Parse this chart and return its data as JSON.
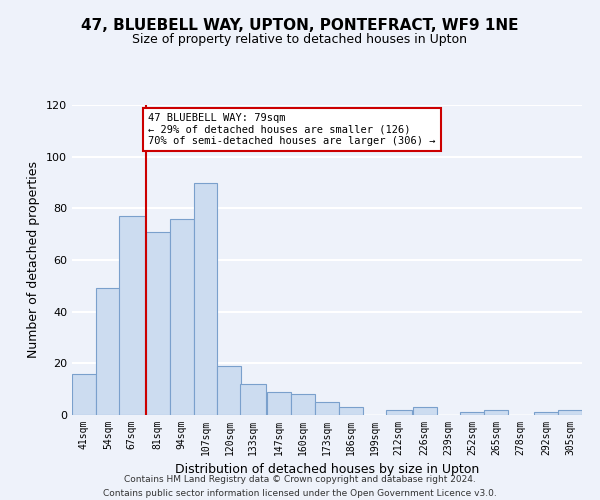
{
  "title": "47, BLUEBELL WAY, UPTON, PONTEFRACT, WF9 1NE",
  "subtitle": "Size of property relative to detached houses in Upton",
  "xlabel": "Distribution of detached houses by size in Upton",
  "ylabel": "Number of detached properties",
  "bin_labels": [
    "41sqm",
    "54sqm",
    "67sqm",
    "81sqm",
    "94sqm",
    "107sqm",
    "120sqm",
    "133sqm",
    "147sqm",
    "160sqm",
    "173sqm",
    "186sqm",
    "199sqm",
    "212sqm",
    "226sqm",
    "239sqm",
    "252sqm",
    "265sqm",
    "278sqm",
    "292sqm",
    "305sqm"
  ],
  "bar_heights": [
    16,
    49,
    77,
    71,
    76,
    90,
    19,
    12,
    9,
    8,
    5,
    3,
    0,
    2,
    3,
    0,
    1,
    2,
    0,
    1,
    2
  ],
  "bar_color": "#ccdcf0",
  "bar_edge_color": "#7aa0cc",
  "annotation_line1": "47 BLUEBELL WAY: 79sqm",
  "annotation_line2": "← 29% of detached houses are smaller (126)",
  "annotation_line3": "70% of semi-detached houses are larger (306) →",
  "annotation_box_color": "#ffffff",
  "annotation_box_edge_color": "#cc0000",
  "property_line_color": "#cc0000",
  "ylim": [
    0,
    120
  ],
  "yticks": [
    0,
    20,
    40,
    60,
    80,
    100,
    120
  ],
  "footer1": "Contains HM Land Registry data © Crown copyright and database right 2024.",
  "footer2": "Contains public sector information licensed under the Open Government Licence v3.0.",
  "background_color": "#eef2fa",
  "grid_color": "#ffffff"
}
